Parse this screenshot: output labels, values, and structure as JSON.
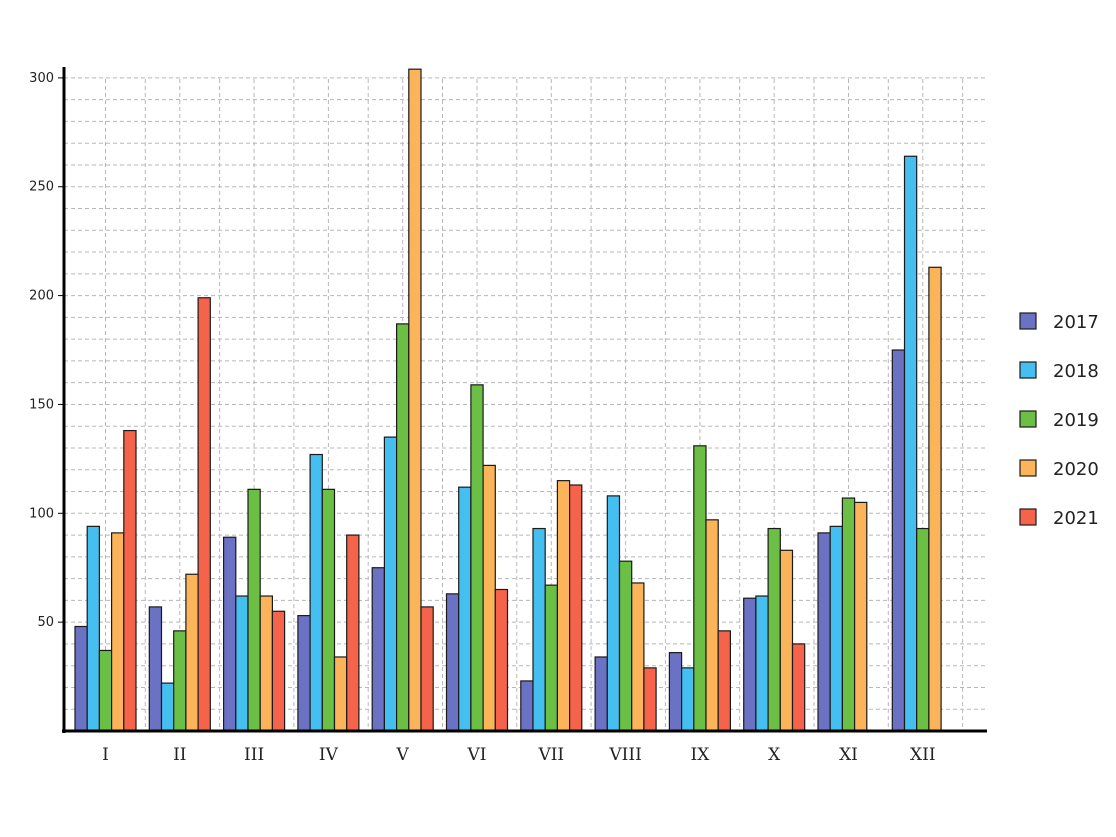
{
  "chart_data": {
    "type": "bar",
    "title": "",
    "xlabel": "",
    "ylabel": "",
    "categories": [
      "I",
      "II",
      "III",
      "IV",
      "V",
      "VI",
      "VII",
      "VIII",
      "IX",
      "X",
      "XI",
      "XII"
    ],
    "series": [
      {
        "name": "2017",
        "color": "#6b72c4",
        "values": [
          48,
          57,
          89,
          53,
          75,
          63,
          23,
          34,
          36,
          61,
          91,
          175
        ]
      },
      {
        "name": "2018",
        "color": "#45bff0",
        "values": [
          94,
          22,
          62,
          127,
          135,
          112,
          93,
          108,
          29,
          62,
          94,
          264
        ]
      },
      {
        "name": "2019",
        "color": "#6bbf44",
        "values": [
          37,
          46,
          111,
          111,
          187,
          159,
          67,
          78,
          131,
          93,
          107,
          93
        ]
      },
      {
        "name": "2020",
        "color": "#fbb45a",
        "values": [
          91,
          72,
          62,
          34,
          304,
          122,
          115,
          68,
          97,
          83,
          105,
          213
        ]
      },
      {
        "name": "2021",
        "color": "#f4634a",
        "values": [
          138,
          199,
          55,
          90,
          57,
          65,
          113,
          29,
          46,
          40,
          0,
          0
        ]
      }
    ],
    "ylim": [
      0,
      305
    ],
    "yticks": [
      50,
      100,
      150,
      200,
      250,
      300
    ],
    "grid": true,
    "legend_position": "right"
  }
}
